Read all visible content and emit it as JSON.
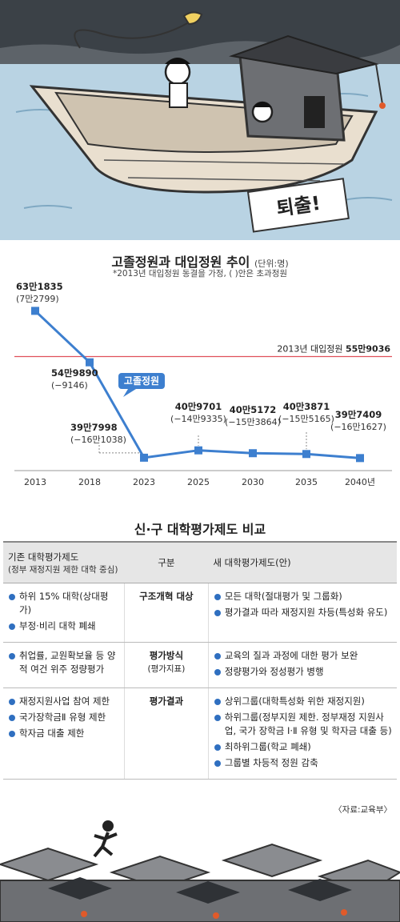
{
  "chart_data": {
    "type": "line",
    "title": "고졸정원과 대입정원 추이",
    "unit": "(단위:명)",
    "note": "*2013년 대입정원 동결을 가정, ( )안은 초과정원",
    "series": [
      {
        "name": "고졸정원",
        "x": [
          "2013",
          "2018",
          "2023",
          "2025",
          "2030",
          "2035",
          "2040년"
        ],
        "values": [
          631835,
          549890,
          397998,
          409701,
          405172,
          403871,
          397409
        ],
        "value_labels": [
          "63만1835",
          "54만9890",
          "39만7998",
          "40만9701",
          "40만5172",
          "40만3871",
          "39만7409"
        ],
        "excess_labels": [
          "(7만2799)",
          "(−9146)",
          "(−16만1038)",
          "(−14만9335)",
          "(−15만3864)",
          "(−15만5165)",
          "(−16만1627)"
        ]
      }
    ],
    "reference_line": {
      "label": "2013년 대입정원",
      "value_label": "55만9036",
      "value": 559036,
      "color": "#e0505a"
    },
    "ylim": [
      380000,
      640000
    ],
    "colors": {
      "line": "#3d7fcf",
      "marker": "#3d7fcf",
      "tag_bg": "#3d7fcf"
    }
  },
  "table": {
    "title": "신·구 대학평가제도 비교",
    "header_old": "기존 대학평가제도",
    "header_old_sub": "(정부 재정지원 제한 대학 중심)",
    "header_mid": "구분",
    "header_new": "새 대학평가제도(안)",
    "rows": [
      {
        "mid": "구조개혁 대상",
        "mid_sub": "",
        "old": [
          "하위 15% 대학(상대평가)",
          "부정·비리 대학 폐쇄"
        ],
        "new": [
          "모든 대학(절대평가 및 그룹화)",
          "평가결과 따라 재정지원 차등(특성화 유도)"
        ]
      },
      {
        "mid": "평가방식",
        "mid_sub": "(평가지표)",
        "old": [
          "취업률, 교원확보율 등 양적 여건 위주 정량평가"
        ],
        "new": [
          "교육의 질과 과정에 대한 평가 보완",
          "정량평가와 정성평가 병행"
        ]
      },
      {
        "mid": "평가결과",
        "mid_sub": "",
        "old": [
          "재정지원사업 참여 제한",
          "국가장학금Ⅱ 유형 제한",
          "학자금 대출 제한"
        ],
        "new": [
          "상위그룹(대학특성화 위한 재정지원)",
          "하위그룹(정부지원 제한. 정부재정 지원사업, 국가 장학금 Ⅰ·Ⅱ 유형 및 학자금 대출 등)",
          "최하위그룹(학교 폐쇄)",
          "그룹별 차등적 정원 감축"
        ]
      }
    ],
    "source": "〈자료:교육부〉"
  },
  "illustration": {
    "sign_text": "퇴출!"
  }
}
